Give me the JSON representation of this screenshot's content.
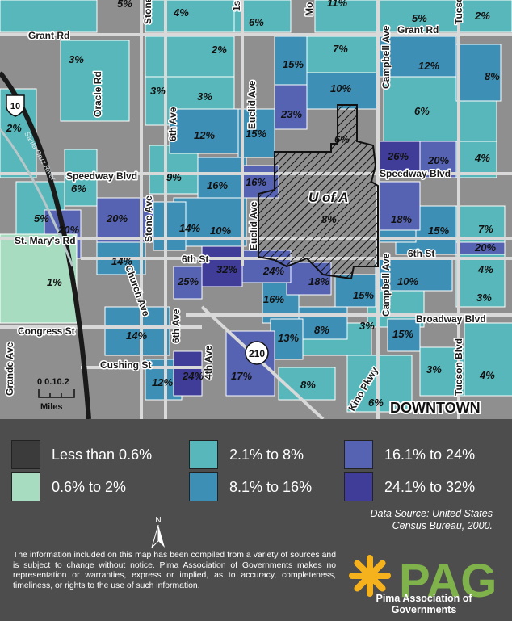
{
  "map": {
    "roads": {
      "grant": "Grant Rd",
      "grant_east": "Grant Rd",
      "speedway": "Speedway Blvd",
      "speedway_east": "Speedway Blvd",
      "st_marys": "St. Mary's Rd",
      "sixth_st": "6th St",
      "sixth_st_east": "6th St",
      "broadway": "Broadway Blvd",
      "congress": "Congress St",
      "cushing": "Cushing St",
      "oracle": "Oracle Rd",
      "sixth_ave": "6th Ave",
      "sixth_ave_south": "6th Ave",
      "stone": "Stone Ave",
      "stone_north": "Stone",
      "euclid": "Euclid Ave",
      "euclid_south": "Euclid Ave",
      "campbell": "Campbell Ave",
      "campbell_south": "Campbell Ave",
      "church": "Church Ave",
      "fourth_ave": "4th Ave",
      "grande": "Grande Ave",
      "tucson_blvd": "Tucson Blvd",
      "tucson_north": "Tucso",
      "kino": "Kino Pkwy",
      "mo": "Mo",
      "first": "1s",
      "santa_cruz": "Santa Cruz River"
    },
    "shields": {
      "i10": "10",
      "r210": "210"
    },
    "area_labels": {
      "uofa": "U of A",
      "downtown": "DOWNTOWN"
    },
    "percents": [
      "5%",
      "4%",
      "6%",
      "11%",
      "5%",
      "2%",
      "3%",
      "2%",
      "7%",
      "15%",
      "12%",
      "8%",
      "3%",
      "3%",
      "10%",
      "6%",
      "23%",
      "2%",
      "12%",
      "15%",
      "6%",
      "26%",
      "20%",
      "4%",
      "6%",
      "9%",
      "16%",
      "16%",
      "20%",
      "8%",
      "18%",
      "5%",
      "20%",
      "14%",
      "10%",
      "15%",
      "7%",
      "20%",
      "1%",
      "14%",
      "32%",
      "24%",
      "18%",
      "10%",
      "4%",
      "25%",
      "16%",
      "15%",
      "3%",
      "14%",
      "13%",
      "8%",
      "3%",
      "15%",
      "12%",
      "24%",
      "17%",
      "8%",
      "3%",
      "4%",
      "6%"
    ],
    "scale": {
      "ticks": "0 0.10.2",
      "unit": "Miles"
    }
  },
  "legend": {
    "items": [
      {
        "label": "Less than 0.6%",
        "color": "#3b3b3b"
      },
      {
        "label": "0.6% to 2%",
        "color": "#a8dcc0"
      },
      {
        "label": "2.1% to 8%",
        "color": "#58b7ba"
      },
      {
        "label": "8.1% to 16%",
        "color": "#3e8fb6"
      },
      {
        "label": "16.1% to 24%",
        "color": "#5663b3"
      },
      {
        "label": "24.1% to 32%",
        "color": "#3f3d97"
      }
    ],
    "north": "N",
    "source": "Data Source: United States Census Bureau, 2000.",
    "disclaimer": "The information included on this map has been compiled from a variety of sources and is subject to change without notice. Pima Association of Governments makes no representation or warranties, express or implied, as to accuracy, completeness, timeliness, or rights to the use of such information.",
    "logo_text": "PAG",
    "logo_caption": "Pima Association of Governments"
  }
}
